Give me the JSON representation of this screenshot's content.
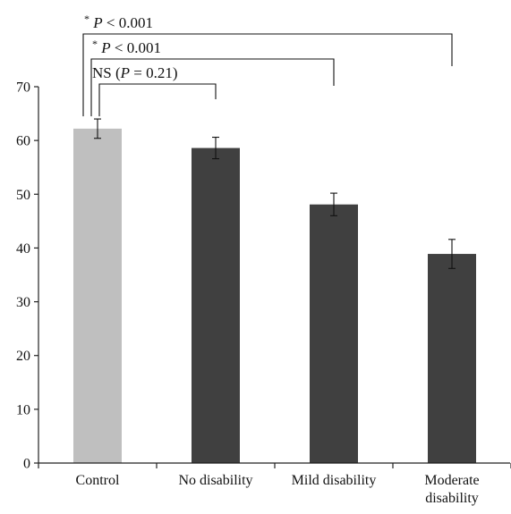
{
  "chart_data": {
    "type": "bar",
    "title": "",
    "xlabel": "",
    "ylabel": "",
    "ylim": [
      0,
      70
    ],
    "yticks": [
      0,
      10,
      20,
      30,
      40,
      50,
      60,
      70
    ],
    "categories": [
      {
        "lines": [
          "Control"
        ]
      },
      {
        "lines": [
          "No disability"
        ]
      },
      {
        "lines": [
          "Mild disability"
        ]
      },
      {
        "lines": [
          "Moderate",
          "disability"
        ]
      }
    ],
    "values": [
      62.2,
      58.6,
      48.1,
      38.9
    ],
    "errors": [
      1.8,
      2.0,
      2.1,
      2.7
    ],
    "colors": [
      "#bfbfbf",
      "#404040",
      "#404040",
      "#404040"
    ],
    "grid": false,
    "annotations": [
      {
        "from": 0,
        "to": 3,
        "parts": [
          {
            "t": "*",
            "sup": true
          },
          {
            "t": " "
          },
          {
            "t": "P",
            "i": true
          },
          {
            "t": " < 0.001"
          }
        ]
      },
      {
        "from": 0,
        "to": 2,
        "parts": [
          {
            "t": "*",
            "sup": true
          },
          {
            "t": " "
          },
          {
            "t": "P",
            "i": true
          },
          {
            "t": " < 0.001"
          }
        ]
      },
      {
        "from": 0,
        "to": 1,
        "parts": [
          {
            "t": "NS ("
          },
          {
            "t": "P",
            "i": true
          },
          {
            "t": " = 0.21)"
          }
        ]
      }
    ]
  }
}
